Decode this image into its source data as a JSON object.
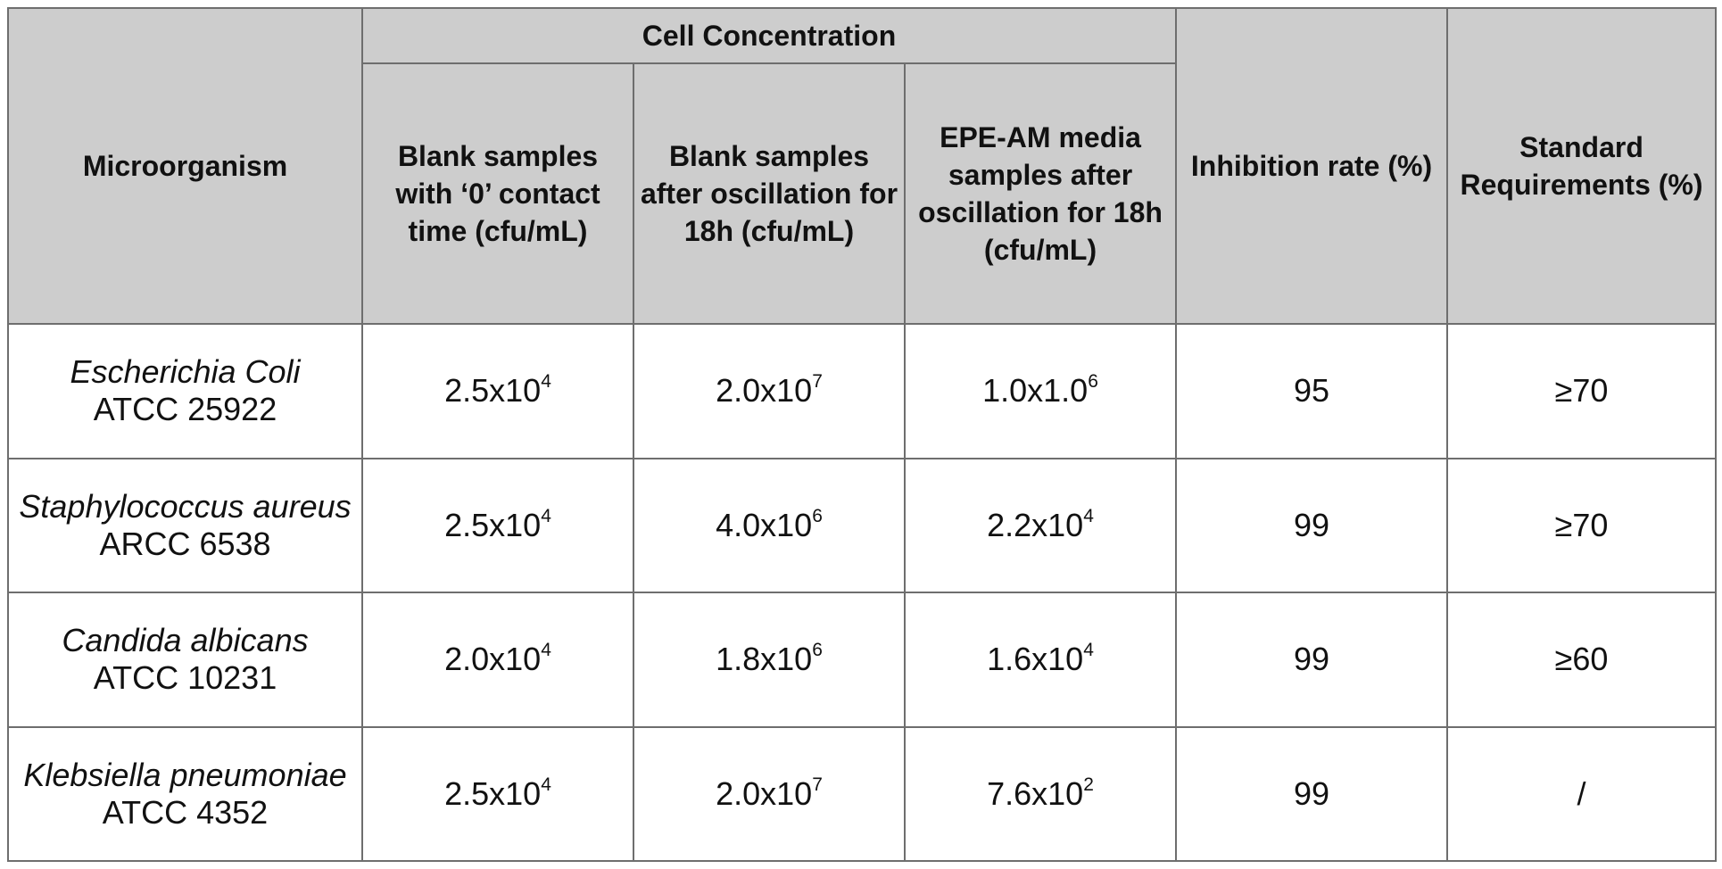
{
  "headers": {
    "microorganism": "Microorganism",
    "cell_concentration": "Cell Concentration",
    "blank_zero_contact": "Blank samples with ‘0’ contact time (cfu/mL)",
    "blank_after_18h": "Blank samples after oscillation for 18h (cfu/mL)",
    "epe_am_after_18h": "EPE-AM media samples after oscillation for 18h (cfu/mL)",
    "inhibition_rate": "Inhibition rate (%)",
    "standard_requirements": "Standard Requirements (%)"
  },
  "rows": [
    {
      "organism": "Escherichia Coli",
      "strain": "ATCC 25922",
      "blank0": {
        "mantissa": "2.5x10",
        "exp": "4"
      },
      "blank18": {
        "mantissa": "2.0x10",
        "exp": "7"
      },
      "epe18": {
        "mantissa": "1.0x1.0",
        "exp": "6"
      },
      "inhibition": "95",
      "standard": "≥70"
    },
    {
      "organism": "Staphylococcus aureus",
      "strain": "ARCC 6538",
      "blank0": {
        "mantissa": "2.5x10",
        "exp": "4"
      },
      "blank18": {
        "mantissa": "4.0x10",
        "exp": "6"
      },
      "epe18": {
        "mantissa": "2.2x10",
        "exp": "4"
      },
      "inhibition": "99",
      "standard": "≥70"
    },
    {
      "organism": "Candida albicans",
      "strain": "ATCC 10231",
      "blank0": {
        "mantissa": "2.0x10",
        "exp": "4"
      },
      "blank18": {
        "mantissa": "1.8x10",
        "exp": "6"
      },
      "epe18": {
        "mantissa": "1.6x10",
        "exp": "4"
      },
      "inhibition": "99",
      "standard": "≥60"
    },
    {
      "organism": "Klebsiella pneumoniae",
      "strain": "ATCC 4352",
      "blank0": {
        "mantissa": "2.5x10",
        "exp": "4"
      },
      "blank18": {
        "mantissa": "2.0x10",
        "exp": "7"
      },
      "epe18": {
        "mantissa": "7.6x10",
        "exp": "2"
      },
      "inhibition": "99",
      "standard": "/"
    }
  ]
}
